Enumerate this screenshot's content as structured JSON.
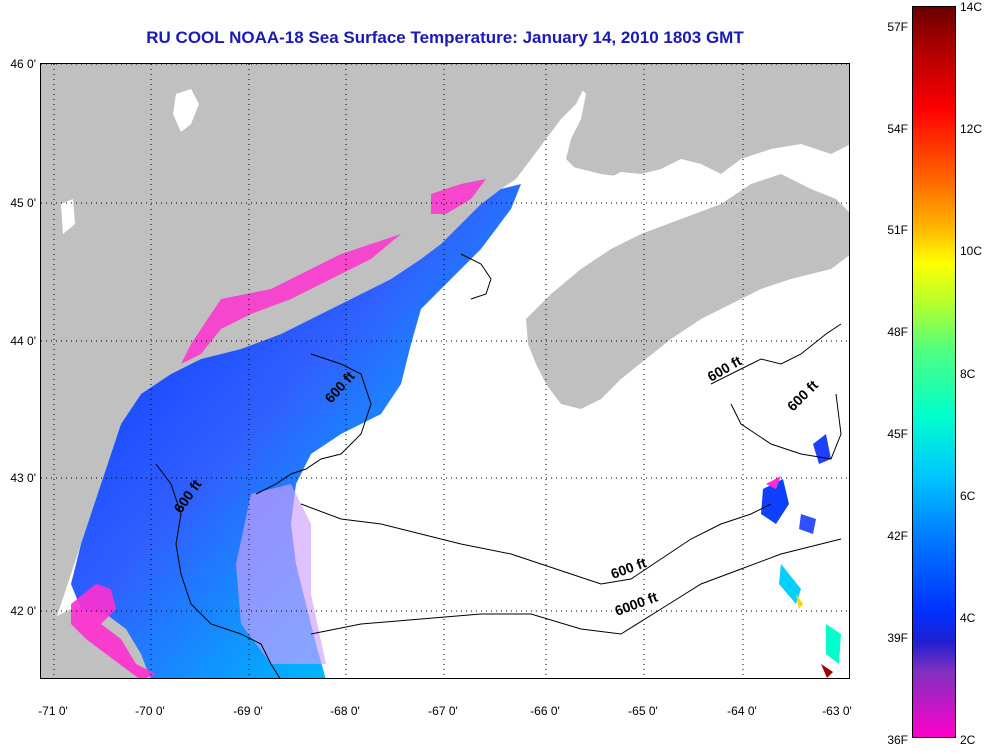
{
  "title": "RU COOL  NOAA-18  Sea Surface Temperature:  January 14, 2010 1803 GMT",
  "map": {
    "latitude_labels": [
      "46 0'",
      "45 0'",
      "44 0'",
      "43 0'",
      "42 0'"
    ],
    "longitude_labels": [
      "-71 0'",
      "-70 0'",
      "-69 0'",
      "-68 0'",
      "-67 0'",
      "-66 0'",
      "-65 0'",
      "-64 0'",
      "-63 0'"
    ],
    "contour_labels": [
      "600 ft",
      "600 ft",
      "600 ft",
      "600 ft",
      "600 ft",
      "6000 ft"
    ],
    "land_color": "#c0c0c0",
    "cloud_color": "#ffffff",
    "grid_style": "dotted"
  },
  "colorbar": {
    "fahrenheit_labels": [
      "57F",
      "54F",
      "51F",
      "48F",
      "45F",
      "42F",
      "39F",
      "36F"
    ],
    "celsius_labels": [
      "14C",
      "12C",
      "10C",
      "8C",
      "6C",
      "4C",
      "2C"
    ],
    "range_c": [
      2,
      14
    ],
    "range_f": [
      36,
      57
    ],
    "colors": [
      "#ff00cc",
      "#0030ff",
      "#00c8ff",
      "#00ffcc",
      "#ffff00",
      "#ff6a00",
      "#ff0000",
      "#6a0000"
    ]
  }
}
